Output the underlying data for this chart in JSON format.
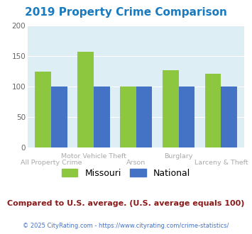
{
  "title": "2019 Property Crime Comparison",
  "title_color": "#1a7abf",
  "categories": [
    "All Property Crime",
    "Motor Vehicle Theft",
    "Arson",
    "Burglary",
    "Larceny & Theft"
  ],
  "missouri_values": [
    125,
    157,
    100,
    127,
    121
  ],
  "national_values": [
    100,
    100,
    100,
    100,
    100
  ],
  "missouri_color": "#8dc63f",
  "national_color": "#4472c4",
  "ylim": [
    0,
    200
  ],
  "yticks": [
    0,
    50,
    100,
    150,
    200
  ],
  "plot_bg_color": "#ddeef4",
  "fig_bg_color": "#ffffff",
  "grid_color": "#ffffff",
  "subtitle": "Compared to U.S. average. (U.S. average equals 100)",
  "subtitle_color": "#8b1a1a",
  "copyright": "© 2025 CityRating.com - https://www.cityrating.com/crime-statistics/",
  "copyright_color": "#4472c4",
  "legend_missouri": "Missouri",
  "legend_national": "National"
}
